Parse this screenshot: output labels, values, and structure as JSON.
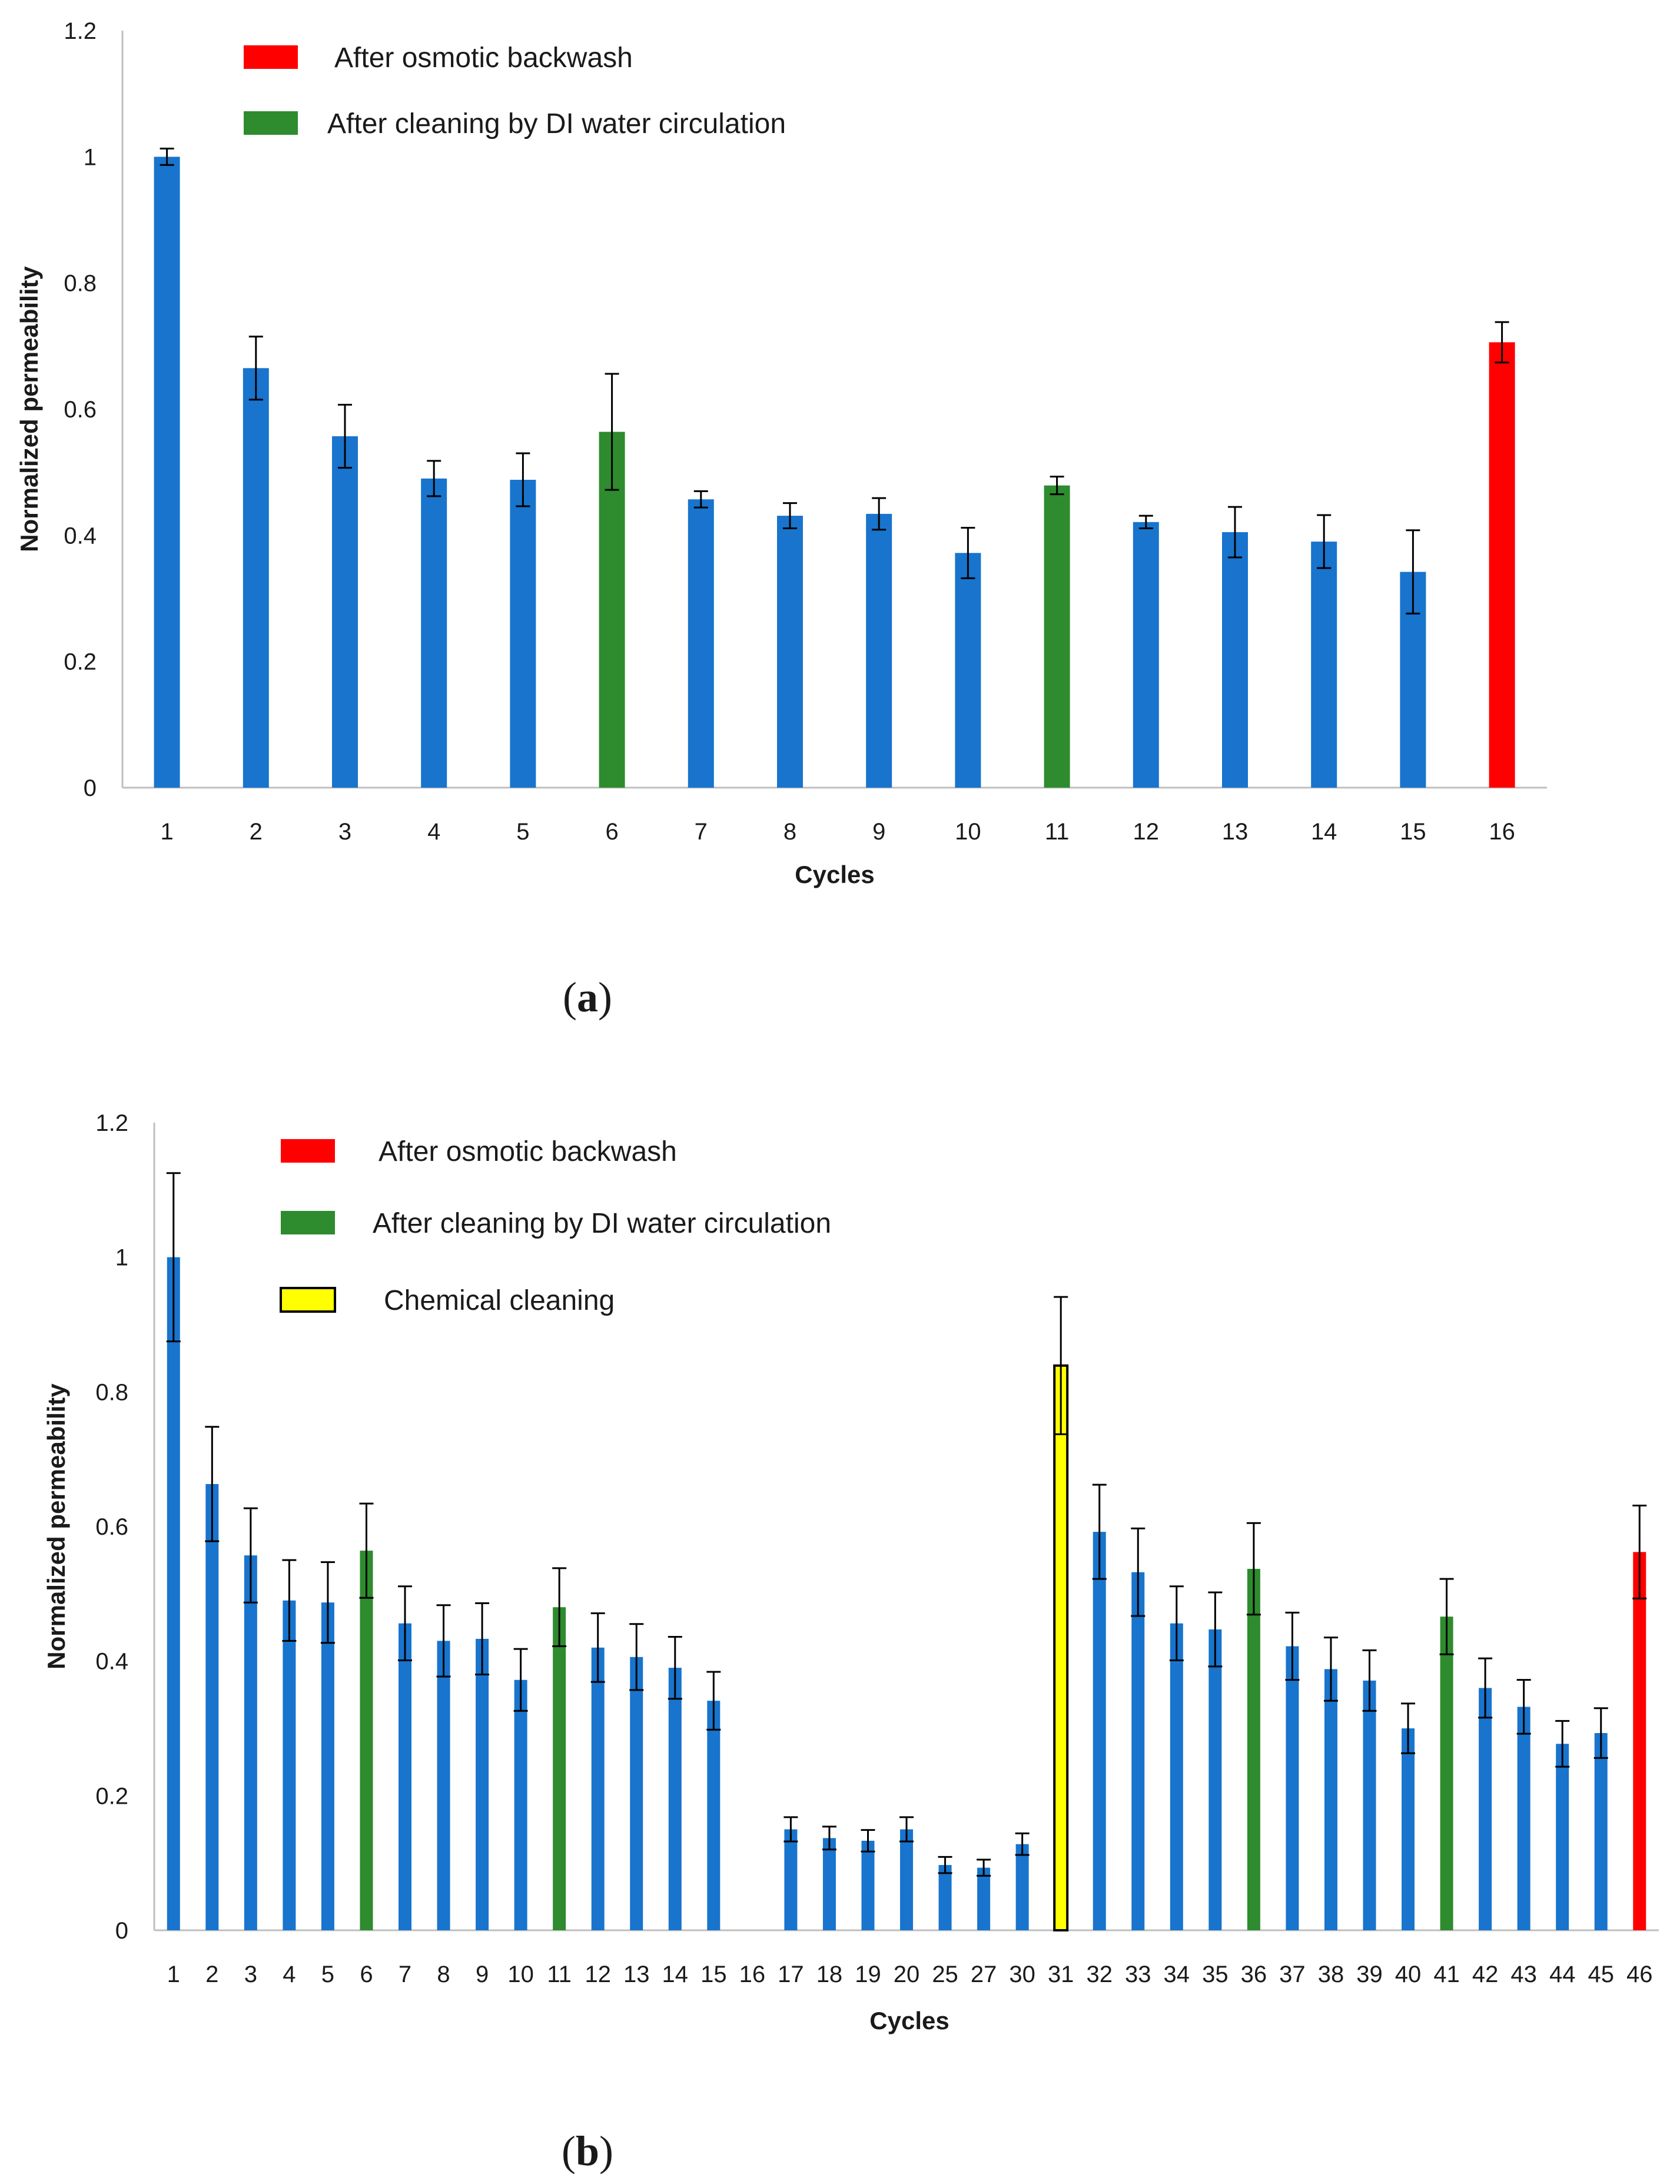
{
  "colors": {
    "normal": "#1874CD",
    "osmotic": "#FF0000",
    "di": "#2E8B2E",
    "chemical": "#FFFF00"
  },
  "chart_data": [
    {
      "type": "bar",
      "panel_label": "a",
      "xlabel": "Cycles",
      "ylabel": "Normalized permeability",
      "ylim": [
        0,
        1.2
      ],
      "yticks": [
        "0",
        "0.2",
        "0.4",
        "0.6",
        "0.8",
        "1",
        "1.2"
      ],
      "categories": [
        "1",
        "2",
        "3",
        "4",
        "5",
        "6",
        "7",
        "8",
        "9",
        "10",
        "11",
        "12",
        "13",
        "14",
        "15",
        "16"
      ],
      "values": [
        1.0,
        0.665,
        0.557,
        0.49,
        0.488,
        0.564,
        0.457,
        0.431,
        0.434,
        0.372,
        0.479,
        0.421,
        0.405,
        0.39,
        0.342,
        0.706
      ],
      "errors": [
        0.013,
        0.05,
        0.05,
        0.028,
        0.042,
        0.092,
        0.013,
        0.02,
        0.025,
        0.04,
        0.014,
        0.01,
        0.04,
        0.042,
        0.066,
        0.032
      ],
      "kinds": [
        "normal",
        "normal",
        "normal",
        "normal",
        "normal",
        "di",
        "normal",
        "normal",
        "normal",
        "normal",
        "di",
        "normal",
        "normal",
        "normal",
        "normal",
        "osmotic"
      ],
      "legend": [
        {
          "kind": "osmotic",
          "label": "After osmotic backwash"
        },
        {
          "kind": "di",
          "label": "After cleaning by DI water circulation"
        }
      ],
      "grid": false
    },
    {
      "type": "bar",
      "panel_label": "b",
      "xlabel": "Cycles",
      "ylabel": "Normalized permeability",
      "ylim": [
        0,
        1.2
      ],
      "yticks": [
        "0",
        "0.2",
        "0.4",
        "0.6",
        "0.8",
        "1",
        "1.2"
      ],
      "categories": [
        "1",
        "2",
        "3",
        "4",
        "5",
        "6",
        "7",
        "8",
        "9",
        "10",
        "11",
        "12",
        "13",
        "14",
        "15",
        "16",
        "17",
        "18",
        "19",
        "20",
        "25",
        "27",
        "30",
        "31",
        "32",
        "33",
        "34",
        "35",
        "36",
        "37",
        "38",
        "39",
        "40",
        "41",
        "42",
        "43",
        "44",
        "45",
        "46"
      ],
      "values": [
        1.0,
        0.663,
        0.557,
        0.49,
        0.487,
        0.564,
        0.456,
        0.43,
        0.433,
        0.372,
        0.48,
        0.42,
        0.406,
        0.39,
        0.341,
        null,
        0.15,
        0.137,
        0.133,
        0.15,
        0.097,
        0.093,
        0.128,
        0.839,
        0.592,
        0.532,
        0.456,
        0.447,
        0.537,
        0.422,
        0.388,
        0.371,
        0.3,
        0.466,
        0.36,
        0.332,
        0.277,
        0.293,
        0.562
      ],
      "errors": [
        0.125,
        0.085,
        0.07,
        0.06,
        0.06,
        0.07,
        0.055,
        0.053,
        0.053,
        0.046,
        0.058,
        0.051,
        0.049,
        0.046,
        0.043,
        null,
        0.018,
        0.017,
        0.016,
        0.018,
        0.012,
        0.012,
        0.016,
        0.102,
        0.07,
        0.065,
        0.055,
        0.055,
        0.068,
        0.05,
        0.047,
        0.045,
        0.037,
        0.056,
        0.044,
        0.04,
        0.034,
        0.037,
        0.069
      ],
      "kinds": [
        "normal",
        "normal",
        "normal",
        "normal",
        "normal",
        "di",
        "normal",
        "normal",
        "normal",
        "normal",
        "di",
        "normal",
        "normal",
        "normal",
        "normal",
        "none",
        "normal",
        "normal",
        "normal",
        "normal",
        "normal",
        "normal",
        "normal",
        "chemical",
        "normal",
        "normal",
        "normal",
        "normal",
        "di",
        "normal",
        "normal",
        "normal",
        "normal",
        "di",
        "normal",
        "normal",
        "normal",
        "normal",
        "osmotic"
      ],
      "legend": [
        {
          "kind": "osmotic",
          "label": "After osmotic backwash"
        },
        {
          "kind": "di",
          "label": "After cleaning by DI water circulation"
        },
        {
          "kind": "chemical",
          "label": "Chemical cleaning"
        }
      ],
      "grid": false
    }
  ]
}
